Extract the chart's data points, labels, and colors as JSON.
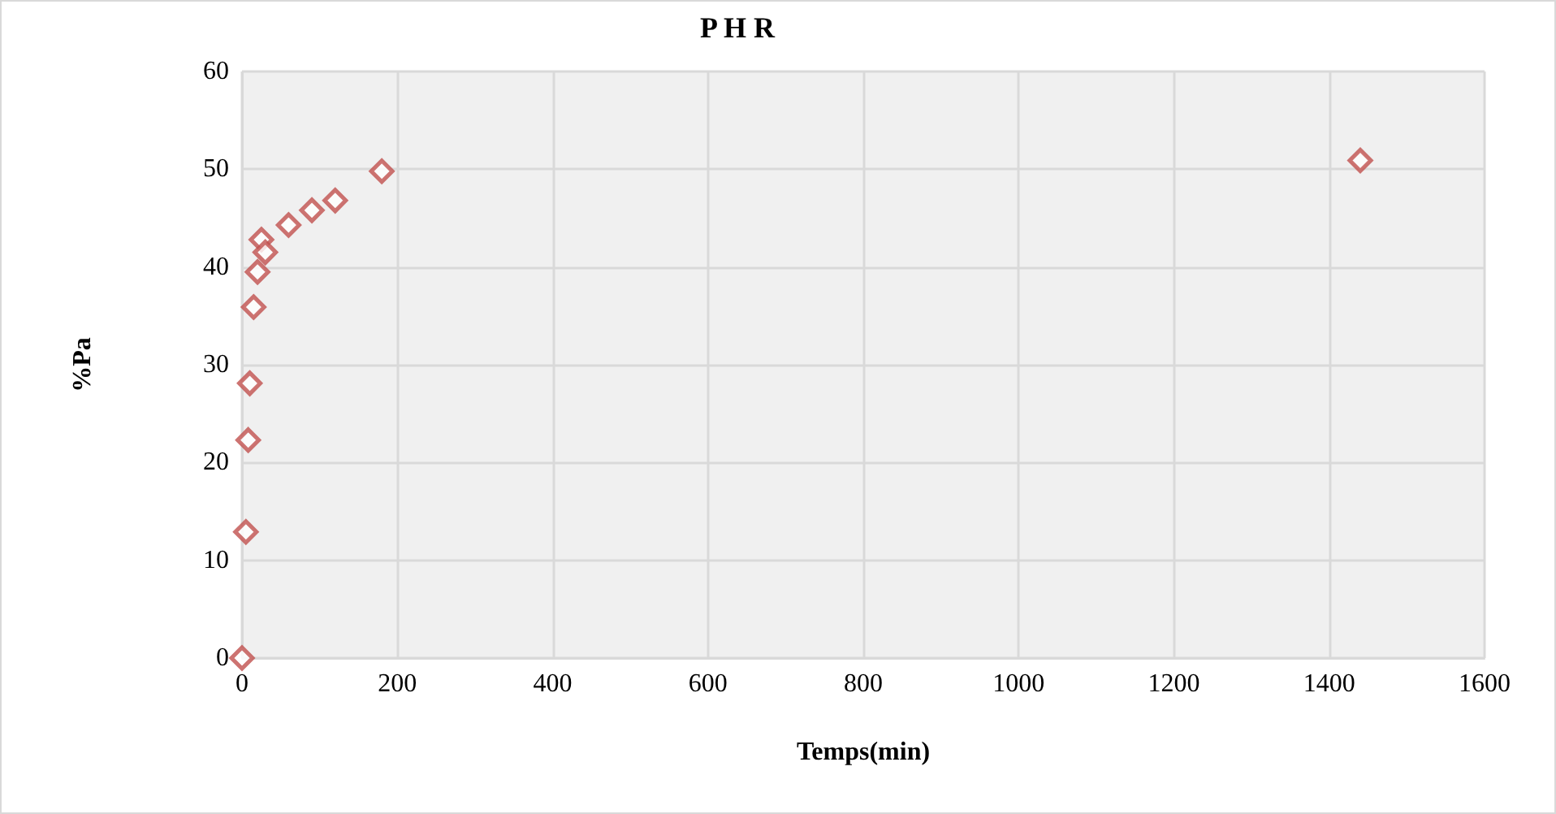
{
  "chart_data": {
    "type": "scatter",
    "title": "P H R",
    "xlabel": "Temps(min)",
    "ylabel": "%Pa",
    "x": [
      0,
      5,
      8,
      10,
      15,
      20,
      25,
      30,
      60,
      90,
      120,
      180,
      1440
    ],
    "series": [
      {
        "color": "#c0504d",
        "values": [
          0,
          12.9,
          22.3,
          28.1,
          35.9,
          39.5,
          42.8,
          41.5,
          44.3,
          45.8,
          46.8,
          49.8,
          50.9
        ]
      }
    ],
    "xlim": [
      0,
      1600
    ],
    "xticks": [
      0,
      200,
      400,
      600,
      800,
      1000,
      1200,
      1400,
      1600
    ],
    "ylim": [
      0,
      60
    ],
    "yticks": [
      0,
      10,
      20,
      30,
      40,
      50,
      60
    ],
    "grid": true,
    "marker": "diamond"
  }
}
